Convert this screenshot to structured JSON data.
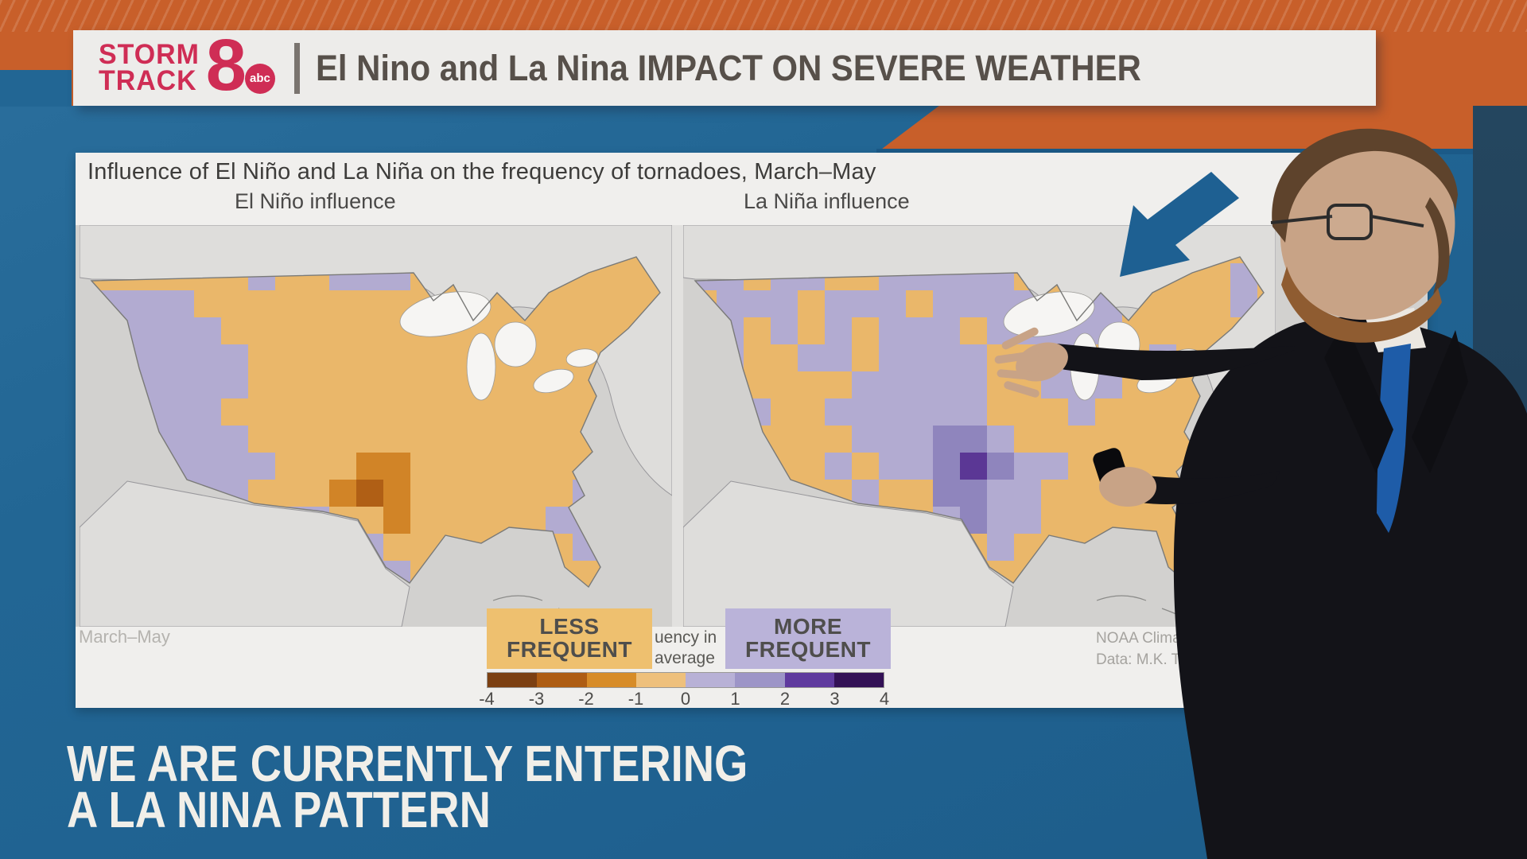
{
  "banner": {
    "logo_line1": "STORM",
    "logo_line2": "TRACK",
    "logo_number": "8",
    "network": "abc",
    "headline": "El Nino and La Nina IMPACT ON SEVERE WEATHER"
  },
  "figure": {
    "title": "Influence of El Niño and La Niña on the frequency of tornadoes, March–May",
    "left_map_label": "El Niño influence",
    "right_map_label": "La Niña influence",
    "season_note": "March–May",
    "attribution_line1": "NOAA Climate.go",
    "attribution_line2": "Data: M.K. Tippet",
    "legend": {
      "less_line1": "LESS",
      "less_line2": "FREQUENT",
      "more_line1": "MORE",
      "more_line2": "FREQUENT",
      "center_note_line1": "uency in",
      "center_note_line2": "average",
      "ticks": [
        "-4",
        "-3",
        "-2",
        "-1",
        "0",
        "1",
        "2",
        "3",
        "4"
      ],
      "colors": [
        "#7c4012",
        "#ae5d13",
        "#d78c28",
        "#eec07c",
        "#b8b1d6",
        "#9d95c7",
        "#5f3a9e",
        "#331156"
      ]
    }
  },
  "maps": {
    "cell_legend": {
      "o": "base: -1 to 0, less frequent (light orange)",
      "O": "-2 to -1 (orange)",
      "B": "-3 to -2 (brown)",
      "p": "0 to 1, more frequent (light purple)",
      "q": "1 to 2 (medium purple)",
      "P": "2 to 3 (dark purple)",
      ".": "base orange / outside"
    },
    "el_nino": {
      "grid": [
        "......p..ppp..........",
        "pppp..................",
        "ppppp.................",
        ".ppppp................",
        ".ppppp................",
        ".pppp.................",
        "..pppp................",
        "..ppppp...OO.......p..",
        "...ppp...OBO......pp..",
        "....pp.pp..O.....ppp..",
        "......ppp.p.......pp..",
        "..........pp.......p.."
      ]
    },
    "la_nina": {
      "grid": [
        "pp.pp..ppppp..p.....p.",
        ".ppp.ppp.pppp.pp....p.",
        "pp.p.p.ppp.ppppp......",
        ".p..pp.pppp..pp..p....",
        "......ppppp..ppp......",
        "..p..pppppp...p.......",
        "......pppqqp..........",
        ".....p.ppqPqpp........",
        "......p..qqpp.........",
        ".........pqpp.........",
        "........p..p..........",
        "......................"
      ]
    }
  },
  "lower_third": {
    "line1": "WE ARE CURRENTLY ENTERING",
    "line2": "A LA NINA PATTERN"
  },
  "icons": {
    "pointer_arrow": "down-left-arrow"
  },
  "colors": {
    "orange_band": "#c85f2a",
    "studio_blue": "#20648f",
    "logo_crimson": "#cf2d55",
    "arrow_blue": "#1e6092",
    "map_base_orange": "#eab76a",
    "map_light_purple": "#b2abd1",
    "banner_bg": "#edecea",
    "panel_bg": "#f0efed",
    "lower_third_text": "#f1efe9"
  }
}
